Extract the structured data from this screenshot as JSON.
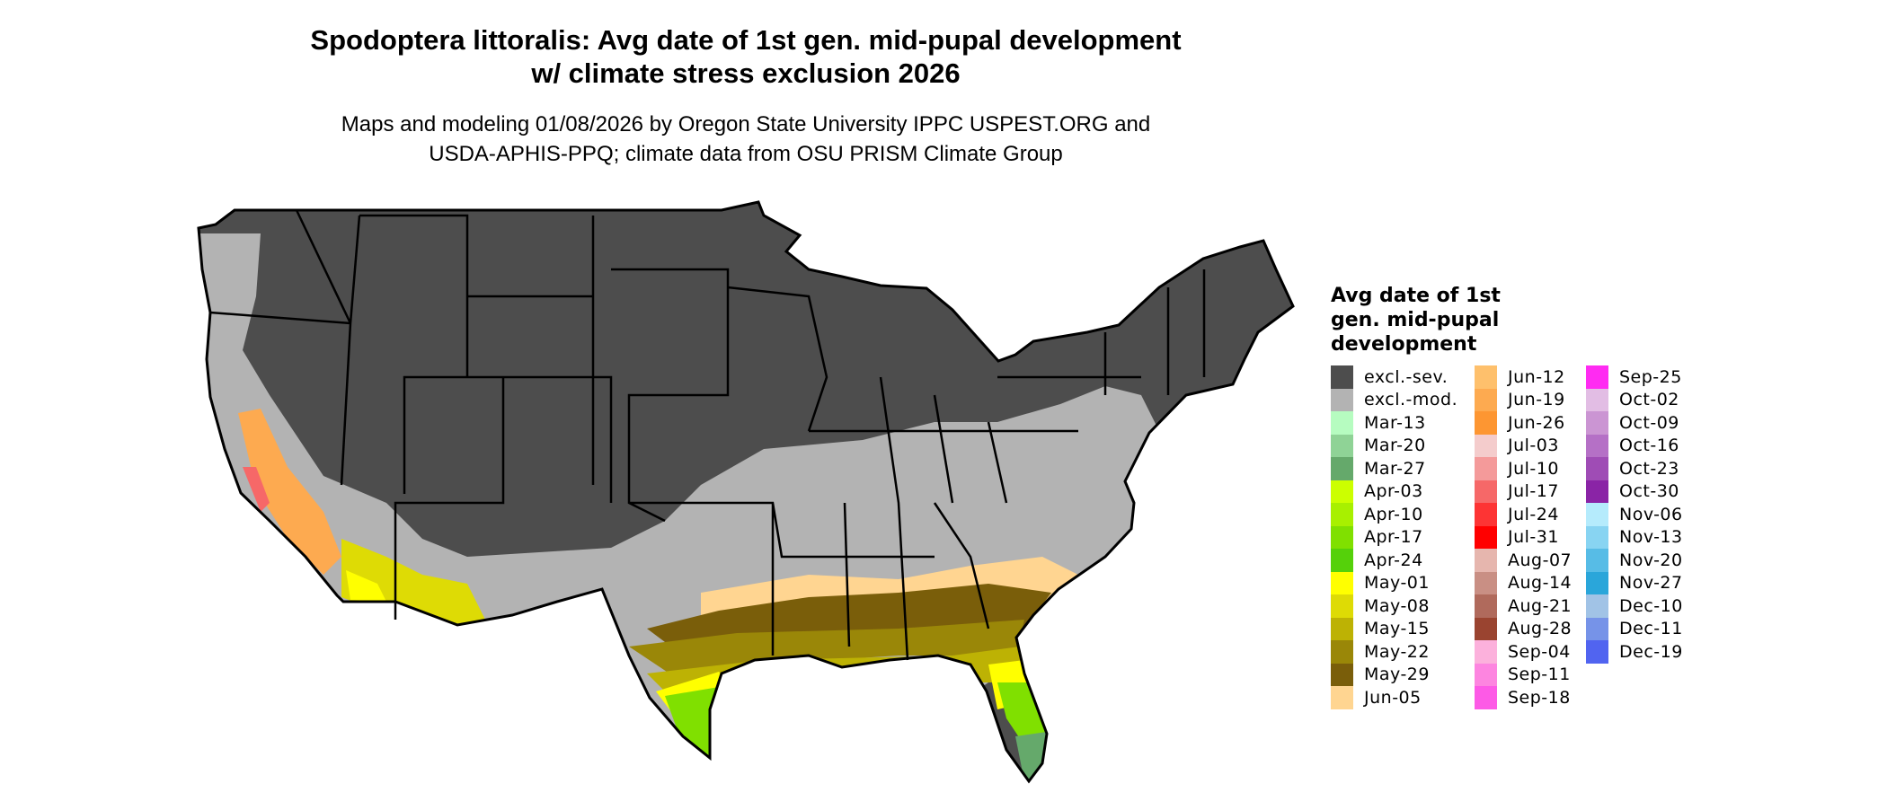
{
  "title": {
    "line1": "Spodoptera littoralis: Avg date of 1st gen. mid-pupal development",
    "line2": "w/ climate stress exclusion 2026"
  },
  "subtitle": {
    "line1": "Maps and modeling 01/08/2026 by Oregon State University IPPC USPEST.ORG and",
    "line2": "USDA-APHIS-PPQ; climate data from OSU PRISM Climate Group"
  },
  "legend": {
    "title_lines": [
      "Avg date of 1st",
      "gen. mid-pupal",
      "development"
    ],
    "columns": [
      [
        {
          "label": "excl.-sev.",
          "color": "#4d4d4d"
        },
        {
          "label": "excl.-mod.",
          "color": "#b3b3b3"
        },
        {
          "label": "Mar-13",
          "color": "#b6fcc0"
        },
        {
          "label": "Mar-20",
          "color": "#8fd396"
        },
        {
          "label": "Mar-27",
          "color": "#65a96b"
        },
        {
          "label": "Apr-03",
          "color": "#ccff00"
        },
        {
          "label": "Apr-10",
          "color": "#a8f000"
        },
        {
          "label": "Apr-17",
          "color": "#80e000"
        },
        {
          "label": "Apr-24",
          "color": "#55d10a"
        },
        {
          "label": "May-01",
          "color": "#ffff00"
        },
        {
          "label": "May-08",
          "color": "#dedb05"
        },
        {
          "label": "May-15",
          "color": "#bdb204"
        },
        {
          "label": "May-22",
          "color": "#9a8708"
        },
        {
          "label": "May-29",
          "color": "#7a5e0a"
        },
        {
          "label": "Jun-05",
          "color": "#ffd591"
        }
      ],
      [
        {
          "label": "Jun-12",
          "color": "#fec06c"
        },
        {
          "label": "Jun-19",
          "color": "#fdaa50"
        },
        {
          "label": "Jun-26",
          "color": "#fd9632"
        },
        {
          "label": "Jul-03",
          "color": "#f4cccc"
        },
        {
          "label": "Jul-10",
          "color": "#f49a9a"
        },
        {
          "label": "Jul-17",
          "color": "#f66868"
        },
        {
          "label": "Jul-24",
          "color": "#fd3434"
        },
        {
          "label": "Jul-31",
          "color": "#ff0000"
        },
        {
          "label": "Aug-07",
          "color": "#e6b6ae"
        },
        {
          "label": "Aug-14",
          "color": "#c98f84"
        },
        {
          "label": "Aug-21",
          "color": "#b06a5c"
        },
        {
          "label": "Aug-28",
          "color": "#9a4430"
        },
        {
          "label": "Sep-04",
          "color": "#fcb1dc"
        },
        {
          "label": "Sep-11",
          "color": "#fd85e0"
        },
        {
          "label": "Sep-18",
          "color": "#fd5ae6"
        }
      ],
      [
        {
          "label": "Sep-25",
          "color": "#ff2bf2"
        },
        {
          "label": "Oct-02",
          "color": "#e2bde4"
        },
        {
          "label": "Oct-09",
          "color": "#cb95d3"
        },
        {
          "label": "Oct-16",
          "color": "#b570c6"
        },
        {
          "label": "Oct-23",
          "color": "#9f4cb5"
        },
        {
          "label": "Oct-30",
          "color": "#8a24a6"
        },
        {
          "label": "Nov-06",
          "color": "#b5ebfc"
        },
        {
          "label": "Nov-13",
          "color": "#88d4f2"
        },
        {
          "label": "Nov-20",
          "color": "#57bce6"
        },
        {
          "label": "Nov-27",
          "color": "#2aa6da"
        },
        {
          "label": "Dec-10",
          "color": "#a1c3e6"
        },
        {
          "label": "Dec-11",
          "color": "#7693e8"
        },
        {
          "label": "Dec-19",
          "color": "#5164f0"
        }
      ]
    ]
  }
}
